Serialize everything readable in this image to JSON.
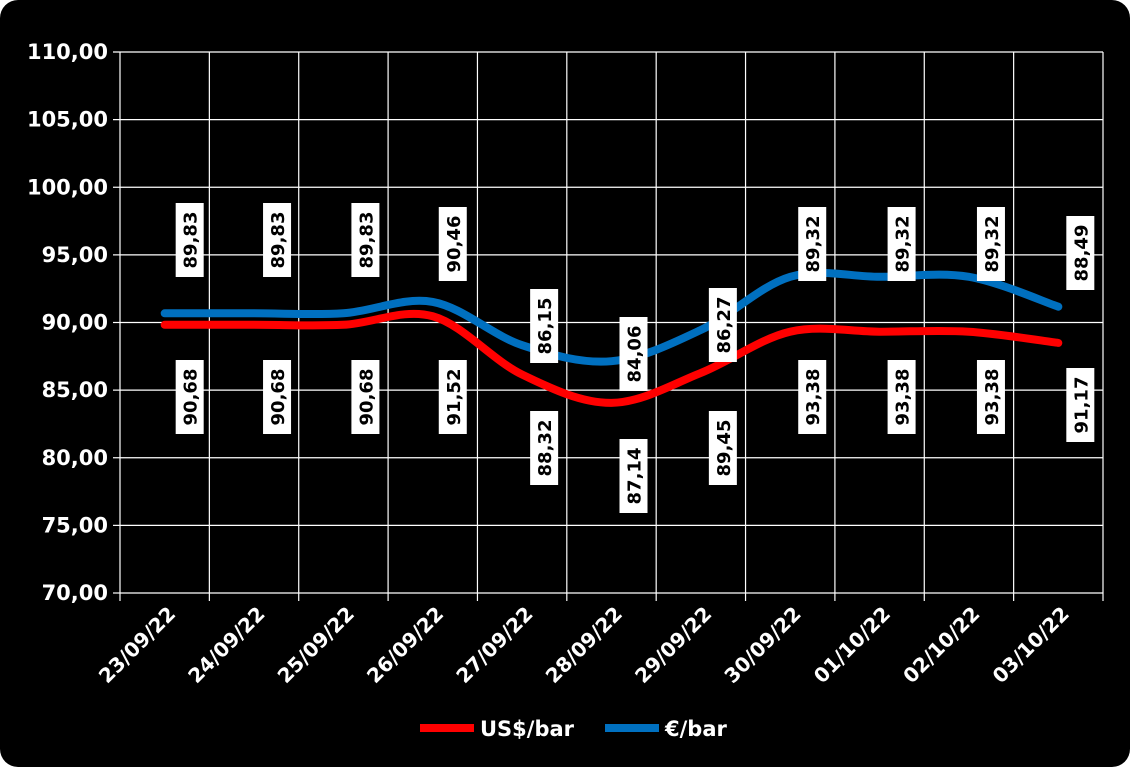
{
  "chart_data": {
    "type": "line",
    "categories": [
      "23/09/22",
      "24/09/22",
      "25/09/22",
      "26/09/22",
      "27/09/22",
      "28/09/22",
      "29/09/22",
      "30/09/22",
      "01/10/22",
      "02/10/22",
      "03/10/22"
    ],
    "series": [
      {
        "name": "US$/bar",
        "color": "#ff0000",
        "values": [
          89.83,
          89.83,
          89.83,
          90.46,
          86.15,
          84.06,
          86.27,
          89.32,
          89.32,
          89.32,
          88.49
        ],
        "labels": [
          "89,83",
          "89,83",
          "89,83",
          "90,46",
          "86,15",
          "84,06",
          "86,27",
          "89,32",
          "89,32",
          "89,32",
          "88,49"
        ]
      },
      {
        "name": "€/bar",
        "color": "#0070c0",
        "values": [
          90.68,
          90.68,
          90.68,
          91.52,
          88.32,
          87.14,
          89.45,
          93.38,
          93.38,
          93.38,
          91.17
        ],
        "labels": [
          "90,68",
          "90,68",
          "90,68",
          "91,52",
          "88,32",
          "87,14",
          "89,45",
          "93,38",
          "93,38",
          "93,38",
          "91,17"
        ]
      }
    ],
    "yticks": [
      "70,00",
      "75,00",
      "80,00",
      "85,00",
      "90,00",
      "95,00",
      "100,00",
      "105,00",
      "110,00"
    ],
    "ylim": [
      70,
      110
    ],
    "grid": true,
    "legend": "bottom"
  }
}
